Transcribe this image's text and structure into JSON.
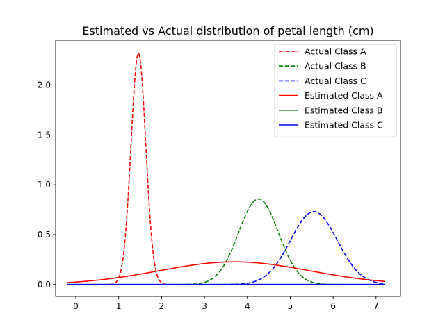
{
  "chart_data": {
    "type": "line",
    "title": "Estimated vs Actual distribution of  petal length (cm)",
    "xlabel": "",
    "ylabel": "",
    "xlim": [
      -0.47,
      7.57
    ],
    "ylim": [
      -0.12,
      2.45
    ],
    "x_ticks": [
      0,
      1,
      2,
      3,
      4,
      5,
      6,
      7
    ],
    "x_tick_labels": [
      "0",
      "1",
      "2",
      "3",
      "4",
      "5",
      "6",
      "7"
    ],
    "y_ticks": [
      0.0,
      0.5,
      1.0,
      1.5,
      2.0
    ],
    "y_tick_labels": [
      "0.0",
      "0.5",
      "1.0",
      "1.5",
      "2.0"
    ],
    "grid": false,
    "legend_position": "top-right",
    "x_range": [
      -0.2,
      7.2
    ],
    "series": [
      {
        "name": "Actual Class A",
        "color": "#ff0000",
        "style": "dashed",
        "mean": 1.46,
        "std": 0.172
      },
      {
        "name": "Actual Class B",
        "color": "#008000",
        "style": "dashed",
        "mean": 4.26,
        "std": 0.465
      },
      {
        "name": "Actual Class C",
        "color": "#0000ff",
        "style": "dashed",
        "mean": 5.55,
        "std": 0.546
      },
      {
        "name": "Estimated Class A",
        "color": "#ff0000",
        "style": "solid",
        "mean": 3.7,
        "std": 1.76
      },
      {
        "name": "Estimated Class B",
        "color": "#008000",
        "style": "solid",
        "mean": 3.7,
        "std": 400
      },
      {
        "name": "Estimated Class C",
        "color": "#0000ff",
        "style": "solid",
        "mean": 3.7,
        "std": 400
      }
    ]
  }
}
